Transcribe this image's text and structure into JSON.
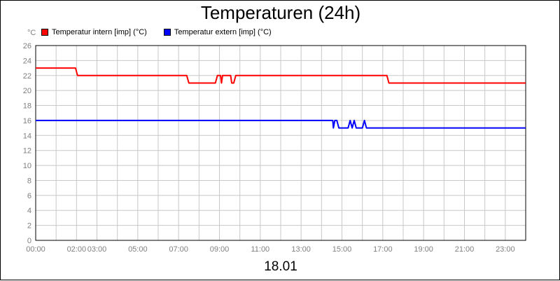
{
  "chart_data": {
    "type": "line",
    "title": "Temperaturen (24h)",
    "unit_label": "°C",
    "date_label": "18.01",
    "xlim": [
      0,
      24
    ],
    "ylim": [
      0,
      26
    ],
    "y_ticks": [
      0,
      2,
      4,
      6,
      8,
      10,
      12,
      14,
      16,
      18,
      20,
      22,
      24,
      26
    ],
    "x_ticks": [
      {
        "h": 0,
        "label": "00:00"
      },
      {
        "h": 2,
        "label": "02:00"
      },
      {
        "h": 3,
        "label": "03:00"
      },
      {
        "h": 5,
        "label": "05:00"
      },
      {
        "h": 7,
        "label": "07:00"
      },
      {
        "h": 9,
        "label": "09:00"
      },
      {
        "h": 11,
        "label": "11:00"
      },
      {
        "h": 13,
        "label": "13:00"
      },
      {
        "h": 15,
        "label": "15:00"
      },
      {
        "h": 17,
        "label": "17:00"
      },
      {
        "h": 19,
        "label": "19:00"
      },
      {
        "h": 21,
        "label": "21:00"
      },
      {
        "h": 23,
        "label": "23:00"
      }
    ],
    "grid": true,
    "legend_position": "top-left",
    "series": [
      {
        "name": "Temperatur intern [imp] (°C)",
        "color": "#ff0000",
        "points": [
          [
            0,
            23
          ],
          [
            1.95,
            23
          ],
          [
            2.05,
            22
          ],
          [
            7.4,
            22
          ],
          [
            7.5,
            21
          ],
          [
            8.8,
            21
          ],
          [
            8.9,
            22
          ],
          [
            9.05,
            22
          ],
          [
            9.1,
            21
          ],
          [
            9.15,
            22
          ],
          [
            9.55,
            22
          ],
          [
            9.6,
            21
          ],
          [
            9.7,
            21
          ],
          [
            9.8,
            22
          ],
          [
            17.2,
            22
          ],
          [
            17.3,
            21
          ],
          [
            24,
            21
          ]
        ]
      },
      {
        "name": "Temperatur extern [imp] (°C)",
        "color": "#0000ff",
        "points": [
          [
            0,
            16
          ],
          [
            14.55,
            16
          ],
          [
            14.58,
            15
          ],
          [
            14.65,
            16
          ],
          [
            14.75,
            16
          ],
          [
            14.85,
            15
          ],
          [
            15.3,
            15
          ],
          [
            15.4,
            16
          ],
          [
            15.5,
            15
          ],
          [
            15.6,
            16
          ],
          [
            15.7,
            15
          ],
          [
            16.0,
            15
          ],
          [
            16.1,
            16
          ],
          [
            16.2,
            15
          ],
          [
            24,
            15
          ]
        ]
      }
    ]
  }
}
